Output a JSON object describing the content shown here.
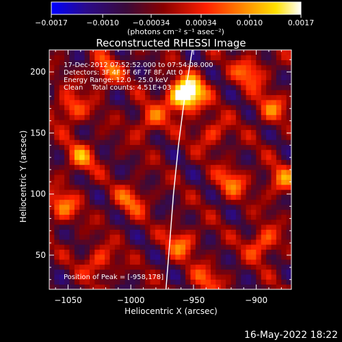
{
  "chart_data": {
    "type": "heatmap",
    "title": "Reconstructed RHESSI Image",
    "xlabel": "Heliocentric X (arcsec)",
    "ylabel": "Heliocentric Y (arcsec)",
    "xlim": [
      -1065,
      -872
    ],
    "ylim": [
      22,
      218
    ],
    "x_ticks": [
      -1050,
      -1000,
      -950,
      -900
    ],
    "x_tick_labels": [
      "−1050",
      "−1000",
      "−950",
      "−900"
    ],
    "y_ticks": [
      50,
      100,
      150,
      200
    ],
    "y_tick_labels": [
      "50",
      "100",
      "150",
      "200"
    ],
    "colorbar": {
      "range": [
        -0.0017,
        0.0017
      ],
      "ticks": [
        -0.0017,
        -0.001,
        -0.00034,
        0.00034,
        0.001,
        0.0017
      ],
      "tick_labels": [
        "−0.0017",
        "−0.0010",
        "−0.00034",
        "0.00034",
        "0.0010",
        "0.0017"
      ],
      "units_label": "(photons cm⁻² s⁻¹ asec⁻²)",
      "colors": [
        "#0000ff",
        "#2a0a8a",
        "#3a0a3a",
        "#8a0000",
        "#ff2000",
        "#ff9000",
        "#ffe000",
        "#ffffff"
      ]
    },
    "limb_curve": [
      [
        -972,
        22
      ],
      [
        -969,
        60
      ],
      [
        -966,
        100
      ],
      [
        -962,
        140
      ],
      [
        -957,
        180
      ],
      [
        -951,
        218
      ]
    ],
    "annotations": [
      "17-Dec-2012 07:52:52.000 to 07:54:08.000",
      "Detectors: 3F 4F 5F 6F 7F 8F, Att 0",
      "Energy Range: 12.0 - 25.0 keV",
      "Clean    Total counts: 4.51E+03"
    ],
    "peak_label": "Position of Peak = [-958,178]",
    "bright_spots": [
      {
        "x": -952,
        "y": 185,
        "v": 0.0017
      },
      {
        "x": -960,
        "y": 178,
        "v": 0.0016
      },
      {
        "x": -1048,
        "y": 170,
        "v": 0.0012
      },
      {
        "x": -1020,
        "y": 200,
        "v": 0.0011
      },
      {
        "x": -905,
        "y": 200,
        "v": 0.0012
      },
      {
        "x": -888,
        "y": 170,
        "v": 0.001
      },
      {
        "x": -1040,
        "y": 130,
        "v": 0.0011
      },
      {
        "x": -985,
        "y": 160,
        "v": 0.001
      },
      {
        "x": -920,
        "y": 110,
        "v": 0.0011
      },
      {
        "x": -935,
        "y": 150,
        "v": 0.0009
      },
      {
        "x": -1055,
        "y": 90,
        "v": 0.0012
      },
      {
        "x": -1000,
        "y": 95,
        "v": 0.001
      },
      {
        "x": -960,
        "y": 60,
        "v": 0.0011
      },
      {
        "x": -895,
        "y": 60,
        "v": 0.0012
      },
      {
        "x": -1025,
        "y": 45,
        "v": 0.001
      },
      {
        "x": -940,
        "y": 30,
        "v": 0.0009
      },
      {
        "x": -880,
        "y": 110,
        "v": 0.0011
      }
    ]
  },
  "footer": {
    "timestamp": "16-May-2022 18:22"
  }
}
